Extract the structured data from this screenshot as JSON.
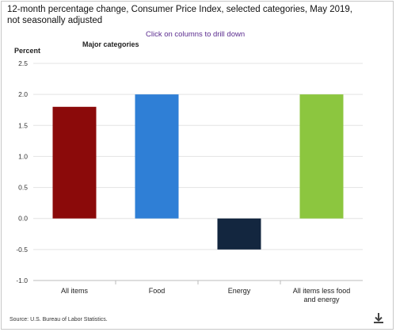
{
  "chart_data": {
    "type": "bar",
    "title": "12-month percentage change, Consumer Price Index, selected categories, May 2019, not seasonally adjusted",
    "subtitle": "Click on columns to drill down",
    "group_label": "Major categories",
    "ylabel": "Percent",
    "xlabel": "",
    "categories": [
      "All items",
      "Food",
      "Energy",
      "All items less food and energy"
    ],
    "values": [
      1.8,
      2.0,
      -0.5,
      2.0
    ],
    "colors": [
      "#8b0a0a",
      "#2f7fd6",
      "#13263f",
      "#8cc63f"
    ],
    "ylim": [
      -1.0,
      2.5
    ],
    "yticks": [
      -1.0,
      -0.5,
      0.0,
      0.5,
      1.0,
      1.5,
      2.0,
      2.5
    ],
    "ytick_labels": [
      "-1.0",
      "-0.5",
      "0.0",
      "0.5",
      "1.0",
      "1.5",
      "2.0",
      "2.5"
    ],
    "grid": true,
    "source": "Source: U.S. Bureau of Labor Statistics."
  },
  "icons": {
    "download": "download-icon"
  }
}
